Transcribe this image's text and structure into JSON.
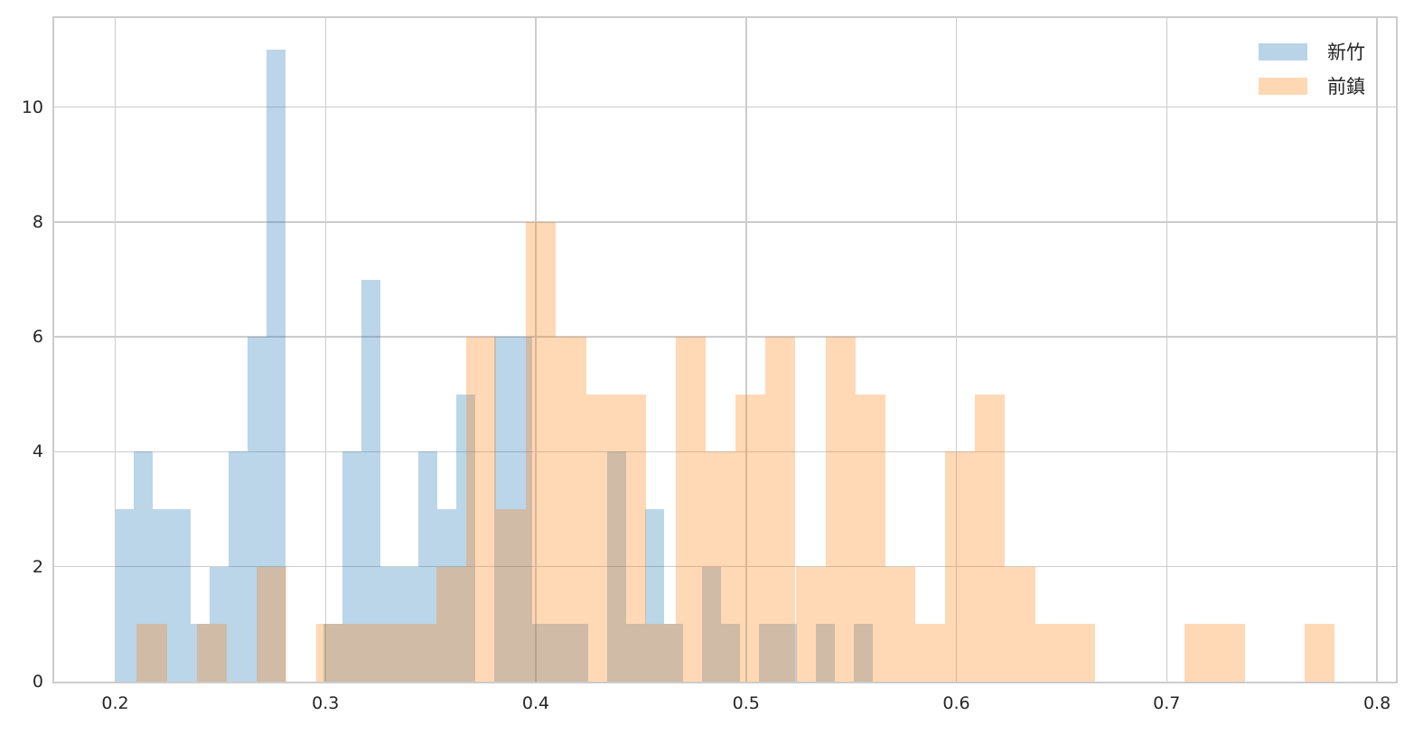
{
  "chart_data": {
    "type": "bar",
    "subtype": "histogram-overlay",
    "title": "",
    "xlabel": "",
    "ylabel": "",
    "xlim": [
      0.171,
      0.809
    ],
    "ylim": [
      0,
      11.55
    ],
    "grid": true,
    "legend_position": "upper right",
    "x_ticks": [
      "0.2",
      "0.3",
      "0.4",
      "0.5",
      "0.6",
      "0.7",
      "0.8"
    ],
    "y_ticks": [
      "0",
      "2",
      "4",
      "6",
      "8",
      "10"
    ],
    "series": [
      {
        "name": "新竹",
        "color": "#1f77b4",
        "alpha": 0.3,
        "bin_start": 0.2,
        "bin_width": 0.009005,
        "values": [
          3,
          4,
          3,
          3,
          1,
          2,
          4,
          6,
          11,
          0,
          0,
          1,
          4,
          7,
          2,
          2,
          4,
          3,
          5,
          0,
          6,
          6,
          1,
          1,
          1,
          0,
          4,
          1,
          3,
          1,
          0,
          2,
          1,
          0,
          1,
          1,
          0,
          1,
          0,
          1
        ]
      },
      {
        "name": "前鎮",
        "color": "#ff7f0e",
        "alpha": 0.3,
        "bin_start": 0.2103,
        "bin_width": 0.014237,
        "values": [
          1,
          0,
          1,
          0,
          2,
          0,
          1,
          1,
          1,
          1,
          2,
          6,
          3,
          8,
          6,
          5,
          5,
          1,
          6,
          4,
          5,
          6,
          2,
          6,
          5,
          2,
          1,
          4,
          5,
          2,
          1,
          1,
          0,
          0,
          0,
          1,
          1,
          0,
          0,
          1
        ]
      }
    ]
  },
  "legend": {
    "items": [
      {
        "label": "新竹",
        "color": "#b9d3e7"
      },
      {
        "label": "前鎮",
        "color": "#fed8b3"
      }
    ]
  }
}
